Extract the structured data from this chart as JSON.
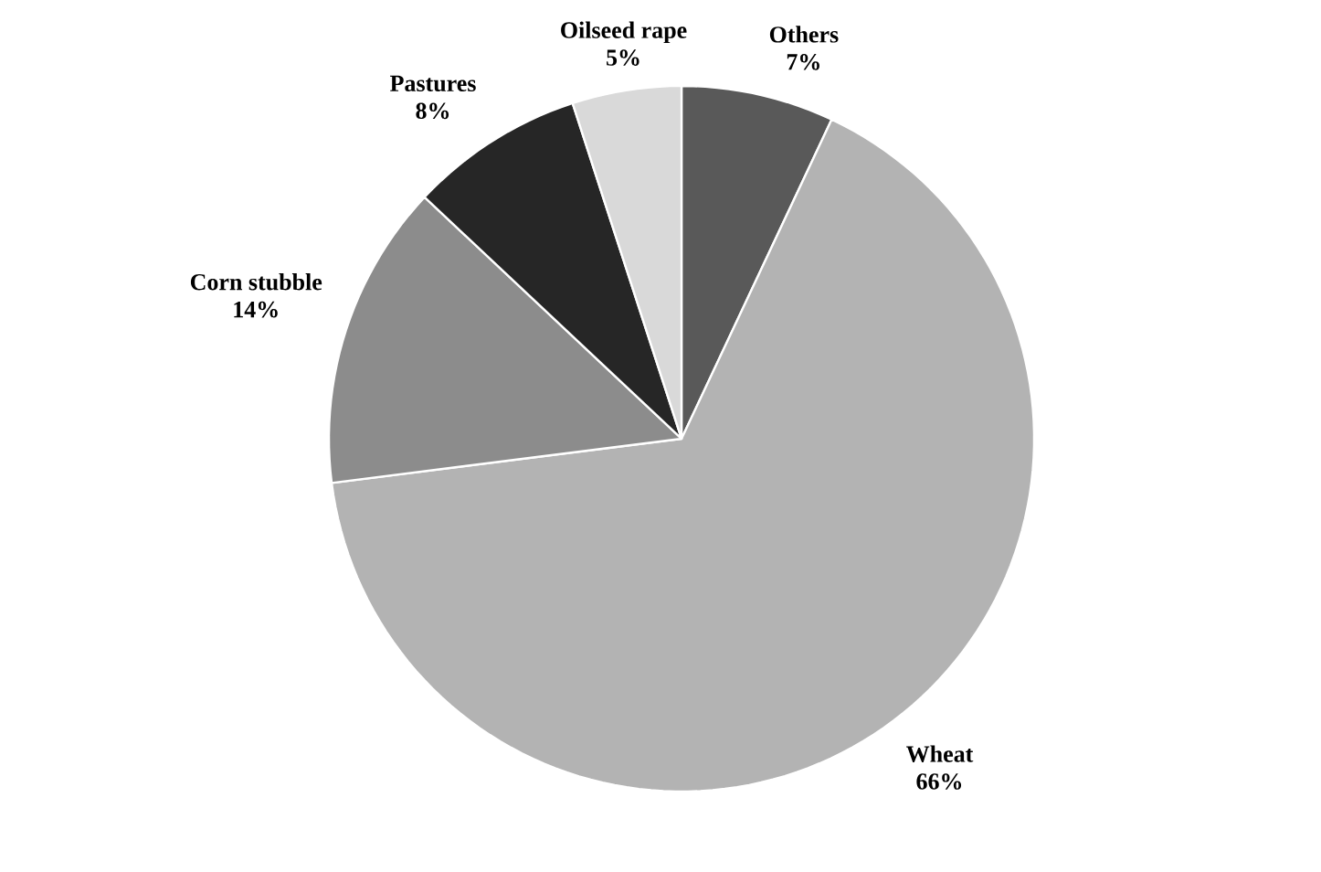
{
  "chart_data": {
    "type": "pie",
    "categories": [
      "Others",
      "Wheat",
      "Corn stubble",
      "Pastures",
      "Oilseed rape"
    ],
    "values": [
      7,
      66,
      14,
      8,
      5
    ],
    "value_labels": [
      "7%",
      "66%",
      "14%",
      "8%",
      "5%"
    ],
    "colors": [
      "#595959",
      "#b3b3b3",
      "#8c8c8c",
      "#262626",
      "#d9d9d9"
    ]
  }
}
